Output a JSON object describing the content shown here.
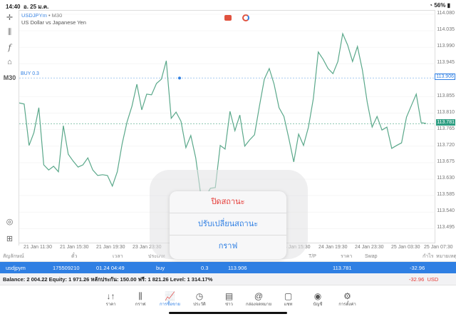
{
  "status": {
    "time": "14:40",
    "date": "อ. 25 ม.ค.",
    "battery": "56%"
  },
  "chart": {
    "symbol": "USDJPYm",
    "timeframe_sep": "•",
    "timeframe": "M30",
    "description": "US Dollar vs Japanese Yen",
    "side_timeframe": "M30",
    "buy_label": "BUY 0.3",
    "buy_price": "113.906",
    "current_price": "113.781"
  },
  "chart_data": {
    "type": "line",
    "color": "#5aa88a",
    "ylim": [
      113.47,
      114.09
    ],
    "y_ticks": [
      "114.080",
      "114.035",
      "113.990",
      "113.945",
      "113.855",
      "113.810",
      "113.765",
      "113.720",
      "113.675",
      "113.630",
      "113.585",
      "113.540",
      "113.495"
    ],
    "x_ticks": [
      "21 Jan 11:30",
      "21 Jan 15:30",
      "21 Jan 19:30",
      "23 Jan 23:30",
      "",
      "24 Jan 15:30",
      "24 Jan 19:30",
      "24 Jan 23:30",
      "25 Jan 03:30",
      "25 Jan 07:30"
    ],
    "buy_level": 113.906,
    "bid_level": 113.781,
    "values": [
      113.838,
      113.835,
      113.722,
      113.757,
      113.825,
      113.669,
      113.655,
      113.665,
      113.65,
      113.776,
      113.698,
      113.679,
      113.663,
      113.669,
      113.688,
      113.655,
      113.64,
      113.642,
      113.64,
      113.611,
      113.65,
      113.727,
      113.786,
      113.829,
      113.889,
      113.819,
      113.862,
      113.86,
      113.891,
      113.903,
      113.953,
      113.796,
      113.813,
      113.788,
      113.716,
      113.749,
      113.688,
      113.591,
      113.581,
      113.605,
      113.607,
      113.722,
      113.712,
      113.815,
      113.762,
      113.805,
      113.72,
      113.737,
      113.751,
      113.829,
      113.903,
      113.932,
      113.889,
      113.825,
      113.801,
      113.741,
      113.677,
      113.753,
      113.722,
      113.772,
      113.85,
      113.977,
      113.957,
      113.932,
      113.918,
      113.951,
      114.027,
      113.996,
      113.951,
      113.992,
      113.928,
      113.84,
      113.772,
      113.801,
      113.764,
      113.772,
      113.714,
      113.722,
      113.729,
      113.799,
      113.831,
      113.862,
      113.784,
      113.782
    ]
  },
  "table": {
    "headers": [
      "สัญลักษณ์",
      "ตั๋ว",
      "เวลา",
      "ประเภท",
      "Volume",
      "ราคา",
      "S/L",
      "T/P",
      "ราคา",
      "Swap",
      "กำไร",
      "หมายเหตุ"
    ],
    "row": {
      "symbol": "usdjpym",
      "ticket": "175509210",
      "time": "01.24 04:49",
      "type": "buy",
      "volume": "0.3",
      "open_price": "113.906",
      "price": "113.781",
      "profit": "-32.96"
    }
  },
  "balance": {
    "text": "Balance: 2 004.22 Equity: 1 971.26 หลักประกัน: 150.00 ฟรี: 1 821.26 Level: 1 314.17%",
    "profit": "-32.96",
    "currency": "USD"
  },
  "popup": {
    "items": [
      "ปิดสถานะ",
      "ปรับเปลี่ยนสถานะ",
      "กราฟ"
    ]
  },
  "nav": [
    {
      "label": "ราคา",
      "icon": "↓↑"
    },
    {
      "label": "กราฟ",
      "icon": "⫼"
    },
    {
      "label": "การซื้อขาย",
      "icon": "📈"
    },
    {
      "label": "ประวัติ",
      "icon": "◷"
    },
    {
      "label": "ข่าว",
      "icon": "▤"
    },
    {
      "label": "กล่องจดหมาย",
      "icon": "@"
    },
    {
      "label": "แชท",
      "icon": "▢"
    },
    {
      "label": "บัญชี",
      "icon": "◉"
    },
    {
      "label": "การตั้งค่า",
      "icon": "⚙"
    }
  ],
  "colors": {
    "accent": "#2f7fe3",
    "line": "#5aa88a",
    "loss": "#e53935"
  }
}
